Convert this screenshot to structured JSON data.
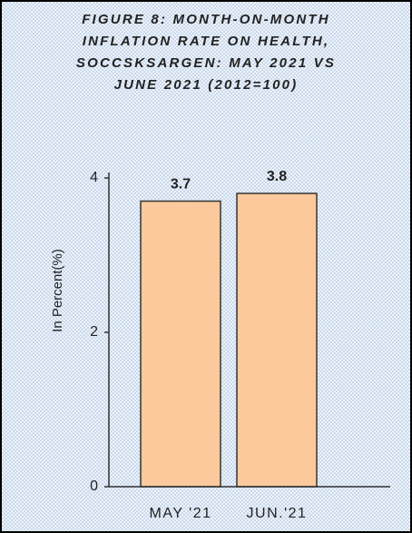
{
  "chart_data": {
    "type": "bar",
    "title": "FIGURE 8: MONTH-ON-MONTH INFLATION RATE ON HEALTH, SOCCSKSARGEN: MAY 2021 VS JUNE 2021 (2012=100)",
    "y_label": "In Percent(%)",
    "categories": [
      "MAY '21",
      "JUN.'21"
    ],
    "values": [
      3.7,
      3.8
    ],
    "color": "#fbc99b",
    "ylim": [
      0,
      4
    ],
    "yticks": [
      0,
      2,
      4
    ],
    "grid": false
  }
}
